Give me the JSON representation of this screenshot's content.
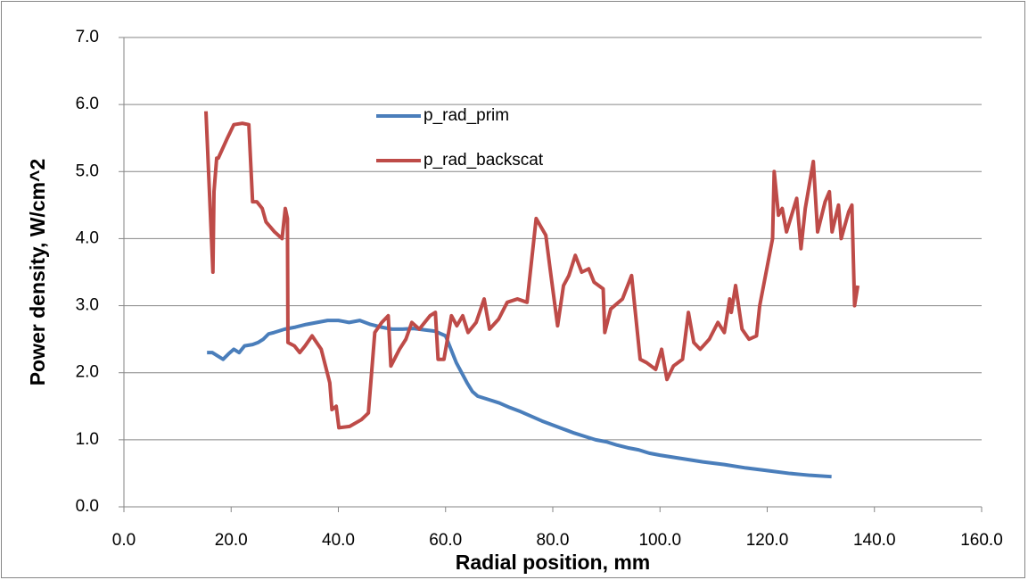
{
  "chart_data": {
    "type": "line",
    "x_label": "Radial position, mm",
    "y_label": "Power density, W/cm^2",
    "xlim": [
      0,
      160
    ],
    "xticks": [
      {
        "value": 0,
        "label": "0.0"
      },
      {
        "value": 20,
        "label": "20.0"
      },
      {
        "value": 40,
        "label": "40.0"
      },
      {
        "value": 60,
        "label": "60.0"
      },
      {
        "value": 80,
        "label": "80.0"
      },
      {
        "value": 100,
        "label": "100.0"
      },
      {
        "value": 120,
        "label": "120.0"
      },
      {
        "value": 140,
        "label": "140.0"
      },
      {
        "value": 160,
        "label": "160.0"
      }
    ],
    "ylim": [
      0,
      7
    ],
    "yticks": [
      {
        "value": 0,
        "label": "0.0"
      },
      {
        "value": 1,
        "label": "1.0"
      },
      {
        "value": 2,
        "label": "2.0"
      },
      {
        "value": 3,
        "label": "3.0"
      },
      {
        "value": 4,
        "label": "4.0"
      },
      {
        "value": 5,
        "label": "5.0"
      },
      {
        "value": 6,
        "label": "6.0"
      },
      {
        "value": 7,
        "label": "7.0"
      }
    ],
    "grid": true,
    "legend": "upper-center",
    "series": [
      {
        "name": "p_rad_prim",
        "color": "#4a7ebb",
        "x": [
          15.5,
          16.5,
          17.5,
          18.5,
          19.5,
          20.5,
          21.5,
          22.5,
          24,
          25,
          26,
          27,
          28,
          30,
          32,
          34,
          36,
          38,
          40,
          42,
          44,
          46,
          48,
          50,
          52,
          54,
          56,
          58,
          60,
          61,
          62,
          63,
          64,
          65,
          66,
          68,
          70,
          72,
          74,
          76,
          78,
          80,
          82,
          84,
          86,
          88,
          90,
          92,
          94,
          96,
          98,
          100,
          104,
          108,
          112,
          116,
          120,
          124,
          128,
          132
        ],
        "values": [
          2.3,
          2.3,
          2.25,
          2.2,
          2.28,
          2.35,
          2.3,
          2.4,
          2.42,
          2.45,
          2.5,
          2.58,
          2.6,
          2.65,
          2.68,
          2.72,
          2.75,
          2.78,
          2.78,
          2.75,
          2.78,
          2.72,
          2.68,
          2.65,
          2.65,
          2.66,
          2.64,
          2.62,
          2.55,
          2.35,
          2.15,
          2.0,
          1.85,
          1.72,
          1.65,
          1.6,
          1.55,
          1.48,
          1.42,
          1.35,
          1.28,
          1.22,
          1.16,
          1.1,
          1.05,
          1.0,
          0.97,
          0.92,
          0.88,
          0.85,
          0.8,
          0.77,
          0.72,
          0.67,
          0.63,
          0.58,
          0.54,
          0.5,
          0.47,
          0.45
        ]
      },
      {
        "name": "p_rad_backscat",
        "color": "#be4b48",
        "x": [
          15.3,
          16.6,
          16.8,
          17.3,
          17.6,
          19.3,
          20.5,
          22.1,
          23.3,
          24,
          24.8,
          25.8,
          26.5,
          28.1,
          29.5,
          30.1,
          30.5,
          30.6,
          31.8,
          32.8,
          33.8,
          35.1,
          36.8,
          38.4,
          38.8,
          39.6,
          40.1,
          42.1,
          44.3,
          45.6,
          46.8,
          48.1,
          49.3,
          49.8,
          51.4,
          52.6,
          53.7,
          55.1,
          57.1,
          58.1,
          58.6,
          59.7,
          61.1,
          62.1,
          63.2,
          64.2,
          65.7,
          67.2,
          68.2,
          69.9,
          71.5,
          73.4,
          75.2,
          76.9,
          78.7,
          79.5,
          80.9,
          82,
          83,
          84.2,
          85.4,
          86.7,
          87.7,
          89.4,
          89.7,
          90.8,
          93,
          94.7,
          96.3,
          97.5,
          99.2,
          100.3,
          101.3,
          102.5,
          104.2,
          105.3,
          106.3,
          107.5,
          109.2,
          110.8,
          112,
          113,
          113.3,
          114.1,
          115.3,
          116.6,
          118,
          118.6,
          121,
          121.3,
          122.1,
          122.8,
          123.6,
          125.5,
          126.3,
          127.1,
          128.6,
          129.4,
          130.8,
          131.6,
          132.1,
          133.3,
          133.8,
          135.2,
          135.8,
          136.3,
          136.9
        ],
        "values": [
          5.9,
          3.5,
          4.7,
          5.2,
          5.2,
          5.5,
          5.7,
          5.72,
          5.7,
          4.55,
          4.55,
          4.45,
          4.25,
          4.1,
          4.0,
          4.45,
          4.3,
          2.45,
          2.4,
          2.3,
          2.4,
          2.55,
          2.35,
          1.85,
          1.45,
          1.5,
          1.18,
          1.2,
          1.3,
          1.4,
          2.6,
          2.75,
          2.85,
          2.1,
          2.35,
          2.5,
          2.75,
          2.65,
          2.85,
          2.9,
          2.2,
          2.2,
          2.85,
          2.7,
          2.85,
          2.6,
          2.75,
          3.1,
          2.65,
          2.8,
          3.05,
          3.1,
          3.05,
          4.3,
          4.05,
          3.55,
          2.7,
          3.3,
          3.45,
          3.75,
          3.5,
          3.55,
          3.35,
          3.25,
          2.6,
          2.95,
          3.1,
          3.45,
          2.2,
          2.15,
          2.05,
          2.35,
          1.9,
          2.1,
          2.2,
          2.9,
          2.45,
          2.35,
          2.5,
          2.75,
          2.6,
          3.1,
          2.9,
          3.3,
          2.65,
          2.5,
          2.55,
          3.0,
          4.0,
          5.0,
          4.35,
          4.45,
          4.1,
          4.6,
          3.85,
          4.45,
          5.15,
          4.1,
          4.55,
          4.7,
          4.1,
          4.5,
          4.0,
          4.4,
          4.5,
          3.0,
          3.3
        ]
      }
    ]
  }
}
